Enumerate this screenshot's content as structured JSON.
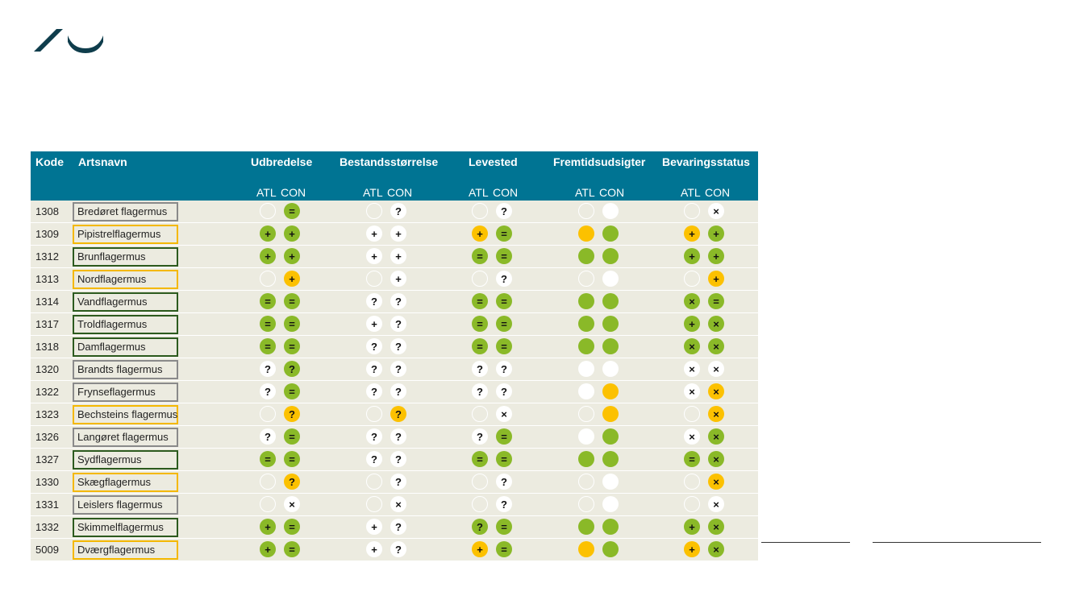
{
  "header": {
    "kode": "Kode",
    "artsnavn": "Artsnavn",
    "groups": [
      "Udbredelse",
      "Bestandsstørrelse",
      "Levested",
      "Fremtidsudsigter",
      "Bevaringsstatus"
    ],
    "atl": "ATL",
    "con": "CON"
  },
  "colors": {
    "header_bg": "#007493",
    "row_bg": "#ecebe0",
    "green": "#8ab928",
    "yellow": "#fcc100",
    "box_gray": "#8a8a8a",
    "box_yellow": "#f4b800",
    "box_green": "#2c5a1e"
  },
  "legend": {
    "symbols": {
      "+": "plus",
      "=": "equals",
      "?": "question",
      "x": "cross"
    }
  },
  "rows": [
    {
      "code": "1308",
      "name": "Bredøret flagermus",
      "box": "gray",
      "cells": [
        [
          "blank",
          ""
        ],
        [
          "green",
          "="
        ],
        [
          "blank",
          ""
        ],
        [
          "white",
          "?"
        ],
        [
          "blank",
          ""
        ],
        [
          "white",
          "?"
        ],
        [
          "blank",
          ""
        ],
        [
          "white",
          ""
        ],
        [
          "blank",
          ""
        ],
        [
          "white",
          "×"
        ]
      ]
    },
    {
      "code": "1309",
      "name": "Pipistrelflagermus",
      "box": "yellow",
      "cells": [
        [
          "green",
          "+"
        ],
        [
          "green",
          "+"
        ],
        [
          "white",
          "+"
        ],
        [
          "white",
          "+"
        ],
        [
          "yellow",
          "+"
        ],
        [
          "green",
          "="
        ],
        [
          "yellow",
          ""
        ],
        [
          "green",
          ""
        ],
        [
          "yellow",
          "+"
        ],
        [
          "green",
          "+"
        ]
      ]
    },
    {
      "code": "1312",
      "name": "Brunflagermus",
      "box": "green",
      "cells": [
        [
          "green",
          "+"
        ],
        [
          "green",
          "+"
        ],
        [
          "white",
          "+"
        ],
        [
          "white",
          "+"
        ],
        [
          "green",
          "="
        ],
        [
          "green",
          "="
        ],
        [
          "green",
          ""
        ],
        [
          "green",
          ""
        ],
        [
          "green",
          "+"
        ],
        [
          "green",
          "+"
        ]
      ]
    },
    {
      "code": "1313",
      "name": "Nordflagermus",
      "box": "yellow",
      "cells": [
        [
          "blank",
          ""
        ],
        [
          "yellow",
          "+"
        ],
        [
          "blank",
          ""
        ],
        [
          "white",
          "+"
        ],
        [
          "blank",
          ""
        ],
        [
          "white",
          "?"
        ],
        [
          "blank",
          ""
        ],
        [
          "white",
          ""
        ],
        [
          "blank",
          ""
        ],
        [
          "yellow",
          "+"
        ]
      ]
    },
    {
      "code": "1314",
      "name": "Vandflagermus",
      "box": "green",
      "cells": [
        [
          "green",
          "="
        ],
        [
          "green",
          "="
        ],
        [
          "white",
          "?"
        ],
        [
          "white",
          "?"
        ],
        [
          "green",
          "="
        ],
        [
          "green",
          "="
        ],
        [
          "green",
          ""
        ],
        [
          "green",
          ""
        ],
        [
          "green",
          "×"
        ],
        [
          "green",
          "="
        ]
      ]
    },
    {
      "code": "1317",
      "name": "Troldflagermus",
      "box": "green",
      "cells": [
        [
          "green",
          "="
        ],
        [
          "green",
          "="
        ],
        [
          "white",
          "+"
        ],
        [
          "white",
          "?"
        ],
        [
          "green",
          "="
        ],
        [
          "green",
          "="
        ],
        [
          "green",
          ""
        ],
        [
          "green",
          ""
        ],
        [
          "green",
          "+"
        ],
        [
          "green",
          "×"
        ]
      ]
    },
    {
      "code": "1318",
      "name": "Damflagermus",
      "box": "green",
      "cells": [
        [
          "green",
          "="
        ],
        [
          "green",
          "="
        ],
        [
          "white",
          "?"
        ],
        [
          "white",
          "?"
        ],
        [
          "green",
          "="
        ],
        [
          "green",
          "="
        ],
        [
          "green",
          ""
        ],
        [
          "green",
          ""
        ],
        [
          "green",
          "×"
        ],
        [
          "green",
          "×"
        ]
      ]
    },
    {
      "code": "1320",
      "name": "Brandts flagermus",
      "box": "gray",
      "cells": [
        [
          "white",
          "?"
        ],
        [
          "green",
          "?"
        ],
        [
          "white",
          "?"
        ],
        [
          "white",
          "?"
        ],
        [
          "white",
          "?"
        ],
        [
          "white",
          "?"
        ],
        [
          "white",
          ""
        ],
        [
          "white",
          ""
        ],
        [
          "white",
          "×"
        ],
        [
          "white",
          "×"
        ]
      ]
    },
    {
      "code": "1322",
      "name": "Frynseflagermus",
      "box": "gray",
      "cells": [
        [
          "white",
          "?"
        ],
        [
          "green",
          "="
        ],
        [
          "white",
          "?"
        ],
        [
          "white",
          "?"
        ],
        [
          "white",
          "?"
        ],
        [
          "white",
          "?"
        ],
        [
          "white",
          ""
        ],
        [
          "yellow",
          ""
        ],
        [
          "white",
          "×"
        ],
        [
          "yellow",
          "×"
        ]
      ]
    },
    {
      "code": "1323",
      "name": "Bechsteins flagermus",
      "box": "yellow",
      "cells": [
        [
          "blank",
          ""
        ],
        [
          "yellow",
          "?"
        ],
        [
          "blank",
          ""
        ],
        [
          "yellow",
          "?"
        ],
        [
          "blank",
          ""
        ],
        [
          "white",
          "×"
        ],
        [
          "blank",
          ""
        ],
        [
          "yellow",
          ""
        ],
        [
          "blank",
          ""
        ],
        [
          "yellow",
          "×"
        ]
      ]
    },
    {
      "code": "1326",
      "name": "Langøret flagermus",
      "box": "gray",
      "cells": [
        [
          "white",
          "?"
        ],
        [
          "green",
          "="
        ],
        [
          "white",
          "?"
        ],
        [
          "white",
          "?"
        ],
        [
          "white",
          "?"
        ],
        [
          "green",
          "="
        ],
        [
          "white",
          ""
        ],
        [
          "green",
          ""
        ],
        [
          "white",
          "×"
        ],
        [
          "green",
          "×"
        ]
      ]
    },
    {
      "code": "1327",
      "name": "Sydflagermus",
      "box": "green",
      "cells": [
        [
          "green",
          "="
        ],
        [
          "green",
          "="
        ],
        [
          "white",
          "?"
        ],
        [
          "white",
          "?"
        ],
        [
          "green",
          "="
        ],
        [
          "green",
          "="
        ],
        [
          "green",
          ""
        ],
        [
          "green",
          ""
        ],
        [
          "green",
          "="
        ],
        [
          "green",
          "×"
        ]
      ]
    },
    {
      "code": "1330",
      "name": "Skægflagermus",
      "box": "yellow",
      "cells": [
        [
          "blank",
          ""
        ],
        [
          "yellow",
          "?"
        ],
        [
          "blank",
          ""
        ],
        [
          "white",
          "?"
        ],
        [
          "blank",
          ""
        ],
        [
          "white",
          "?"
        ],
        [
          "blank",
          ""
        ],
        [
          "white",
          ""
        ],
        [
          "blank",
          ""
        ],
        [
          "yellow",
          "×"
        ]
      ]
    },
    {
      "code": "1331",
      "name": "Leislers flagermus",
      "box": "gray",
      "cells": [
        [
          "blank",
          ""
        ],
        [
          "white",
          "×"
        ],
        [
          "blank",
          ""
        ],
        [
          "white",
          "×"
        ],
        [
          "blank",
          ""
        ],
        [
          "white",
          "?"
        ],
        [
          "blank",
          ""
        ],
        [
          "white",
          ""
        ],
        [
          "blank",
          ""
        ],
        [
          "white",
          "×"
        ]
      ]
    },
    {
      "code": "1332",
      "name": "Skimmelflagermus",
      "box": "green",
      "cells": [
        [
          "green",
          "+"
        ],
        [
          "green",
          "="
        ],
        [
          "white",
          "+"
        ],
        [
          "white",
          "?"
        ],
        [
          "green",
          "?"
        ],
        [
          "green",
          "="
        ],
        [
          "green",
          ""
        ],
        [
          "green",
          ""
        ],
        [
          "green",
          "+"
        ],
        [
          "green",
          "×"
        ]
      ]
    },
    {
      "code": "5009",
      "name": "Dværgflagermus",
      "box": "yellow",
      "cells": [
        [
          "green",
          "+"
        ],
        [
          "green",
          "="
        ],
        [
          "white",
          "+"
        ],
        [
          "white",
          "?"
        ],
        [
          "yellow",
          "+"
        ],
        [
          "green",
          "="
        ],
        [
          "yellow",
          ""
        ],
        [
          "green",
          ""
        ],
        [
          "yellow",
          "+"
        ],
        [
          "green",
          "×"
        ]
      ]
    }
  ]
}
